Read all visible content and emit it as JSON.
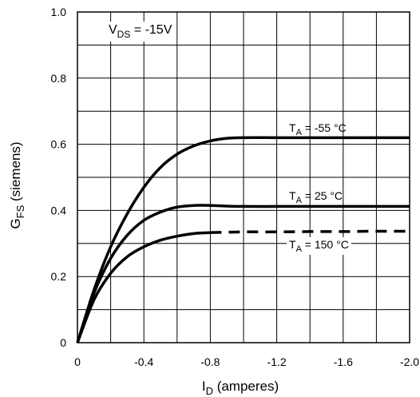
{
  "chart_data": {
    "type": "line",
    "annotation": {
      "main": "V",
      "sub": "DS",
      "rest": " = -15V"
    },
    "xlabel": {
      "main": "I",
      "sub": "D",
      "rest": " (amperes)"
    },
    "ylabel": {
      "main": "G",
      "sub": "FS",
      "rest": "  (siemens)"
    },
    "xlim": [
      0,
      -2.0
    ],
    "ylim": [
      0,
      1.0
    ],
    "xticks": [
      0,
      -0.2,
      -0.4,
      -0.6,
      -0.8,
      -1.0,
      -1.2,
      -1.4,
      -1.6,
      -1.8,
      -2.0
    ],
    "xtick_labels": [
      "0",
      "-0.4",
      "-0.8",
      "-1.2",
      "-1.6",
      "-2.0"
    ],
    "xtick_label_values": [
      0,
      -0.4,
      -0.8,
      -1.2,
      -1.6,
      -2.0
    ],
    "yticks": [
      0,
      0.1,
      0.2,
      0.3,
      0.4,
      0.5,
      0.6,
      0.7,
      0.8,
      0.9,
      1.0
    ],
    "ytick_labels": [
      "0",
      "0.2",
      "0.4",
      "0.6",
      "0.8",
      "1.0"
    ],
    "ytick_label_values": [
      0,
      0.2,
      0.4,
      0.6,
      0.8,
      1.0
    ],
    "grid": true,
    "series": [
      {
        "name": {
          "main": "T",
          "sub": "A",
          "rest": " = -55 °C"
        },
        "style": "solid",
        "x": [
          0,
          -0.1,
          -0.2,
          -0.3,
          -0.4,
          -0.5,
          -0.6,
          -0.7,
          -0.8,
          -0.9,
          -1.0,
          -1.2,
          -1.4,
          -1.6,
          -1.8,
          -2.0
        ],
        "y": [
          0,
          0.16,
          0.29,
          0.39,
          0.47,
          0.53,
          0.57,
          0.595,
          0.61,
          0.618,
          0.62,
          0.62,
          0.62,
          0.62,
          0.62,
          0.62
        ]
      },
      {
        "name": {
          "main": "T",
          "sub": "A",
          "rest": " = 25 °C"
        },
        "style": "solid",
        "x": [
          0,
          -0.1,
          -0.2,
          -0.3,
          -0.4,
          -0.5,
          -0.6,
          -0.7,
          -0.8,
          -0.9,
          -1.0,
          -1.2,
          -1.4,
          -1.6,
          -1.8,
          -2.0
        ],
        "y": [
          0,
          0.15,
          0.255,
          0.325,
          0.37,
          0.395,
          0.41,
          0.415,
          0.415,
          0.413,
          0.412,
          0.412,
          0.412,
          0.412,
          0.412,
          0.412
        ]
      },
      {
        "name": {
          "main": "T",
          "sub": "A",
          "rest": " = 150 °C"
        },
        "style": "mixed",
        "x": [
          0,
          -0.1,
          -0.2,
          -0.3,
          -0.4,
          -0.5,
          -0.6,
          -0.7,
          -0.8,
          -0.9,
          -1.0,
          -1.2,
          -1.4,
          -1.6,
          -1.8,
          -2.0
        ],
        "y": [
          0,
          0.13,
          0.21,
          0.26,
          0.29,
          0.31,
          0.322,
          0.33,
          0.333,
          0.334,
          0.335,
          0.335,
          0.336,
          0.336,
          0.337,
          0.337
        ],
        "dashed_from_x": -0.8
      }
    ]
  }
}
